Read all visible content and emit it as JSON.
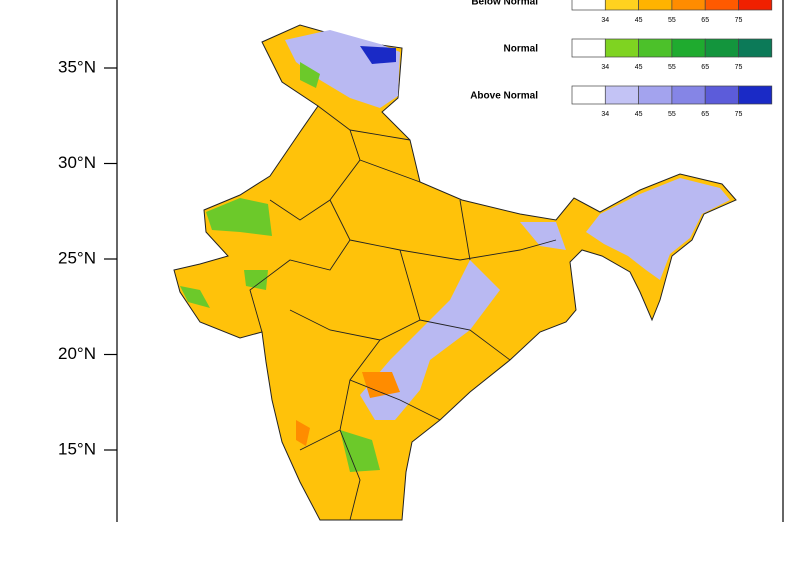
{
  "map": {
    "lat_labels": [
      "35°N",
      "30°N",
      "25°N",
      "20°N",
      "15°N"
    ],
    "legend": [
      {
        "label": "Below Normal",
        "colors": [
          "#ffffff",
          "#ffd21f",
          "#ffb300",
          "#ff8c00",
          "#ff5a00",
          "#f02000"
        ],
        "ticks": [
          "34",
          "45",
          "55",
          "65",
          "75"
        ]
      },
      {
        "label": "Normal",
        "colors": [
          "#ffffff",
          "#7fd321",
          "#4cc12a",
          "#1fab2f",
          "#13953d",
          "#0c7a58"
        ],
        "ticks": [
          "34",
          "45",
          "55",
          "65",
          "75"
        ]
      },
      {
        "label": "Above Normal",
        "colors": [
          "#ffffff",
          "#c3c3f5",
          "#a3a3ee",
          "#8585e6",
          "#5c5cda",
          "#1a2ac6"
        ],
        "ticks": [
          "34",
          "45",
          "55",
          "65",
          "75"
        ]
      }
    ]
  }
}
